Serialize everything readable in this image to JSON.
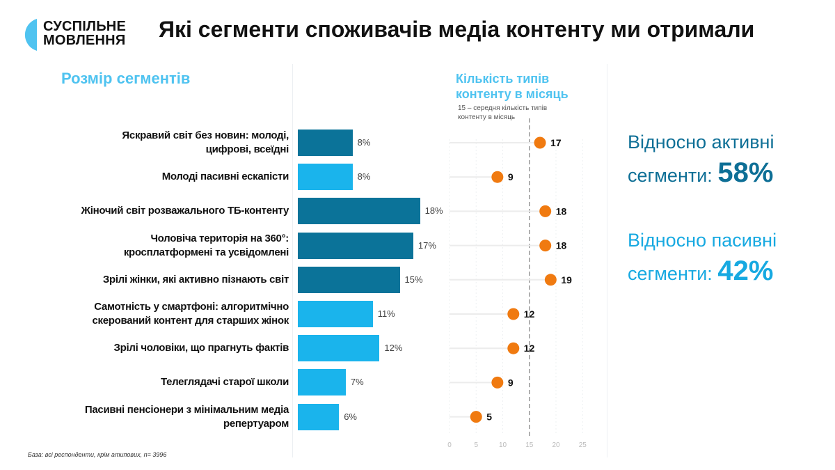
{
  "brand": {
    "name_line1": "СУСПІЛЬНЕ",
    "name_line2": "МОВЛЕННЯ",
    "logo_color": "#4fc3f0"
  },
  "title": "Які сегменти споживачів медіа контенту ми отримали",
  "colors": {
    "active": "#0b7399",
    "passive": "#1ab4ec",
    "dot": "#f07a10",
    "accent_title": "#4fc3f0"
  },
  "chart_data": [
    {
      "type": "bar",
      "title": "Розмір сегментів",
      "orientation": "horizontal",
      "unit": "%",
      "categories": [
        [
          "Яскравий світ без новин: молоді,",
          "цифрові, всеїдні"
        ],
        [
          "Молоді пасивні ескапісти"
        ],
        [
          "Жіночий світ розважального ТБ-контенту"
        ],
        [
          "Чоловіча територія на 360°:",
          "кросплатформені та усвідомлені"
        ],
        [
          "Зрілі жінки, які активно пізнають світ"
        ],
        [
          "Самотність у смартфоні: алгоритмічно",
          "скерований контент для старших жінок"
        ],
        [
          "Зрілі чоловіки, що прагнуть фактів"
        ],
        [
          "Телеглядачі старої школи"
        ],
        [
          "Пасивні пенсіонери з мінімальним медіа",
          "репертуаром"
        ]
      ],
      "values": [
        8,
        8,
        18,
        17,
        15,
        11,
        12,
        7,
        6
      ],
      "labels": [
        "8%",
        "8%",
        "18%",
        "17%",
        "15%",
        "11%",
        "12%",
        "7%",
        "6%"
      ],
      "segment_type": [
        "active",
        "passive",
        "active",
        "active",
        "active",
        "passive",
        "passive",
        "passive",
        "passive"
      ]
    },
    {
      "type": "scatter",
      "subtype": "lollipop",
      "title": "Кількість типів контенту в місяць",
      "subtitle": "15 – середня кількість типів контенту в місяць",
      "values": [
        17,
        9,
        18,
        18,
        19,
        12,
        12,
        9,
        5
      ],
      "reference_line": 15,
      "xlim": [
        0,
        25
      ],
      "xticks": [
        0,
        5,
        10,
        15,
        20,
        25
      ],
      "grid": true
    }
  ],
  "summary": {
    "active_line1": "Відносно активні",
    "active_line2": "сегменти:",
    "active_value": "58%",
    "passive_line1": "Відносно пасивні",
    "passive_line2": "сегменти:",
    "passive_value": "42%"
  },
  "footnote": "База: всі респонденти, крім атипових,  n= 3996"
}
